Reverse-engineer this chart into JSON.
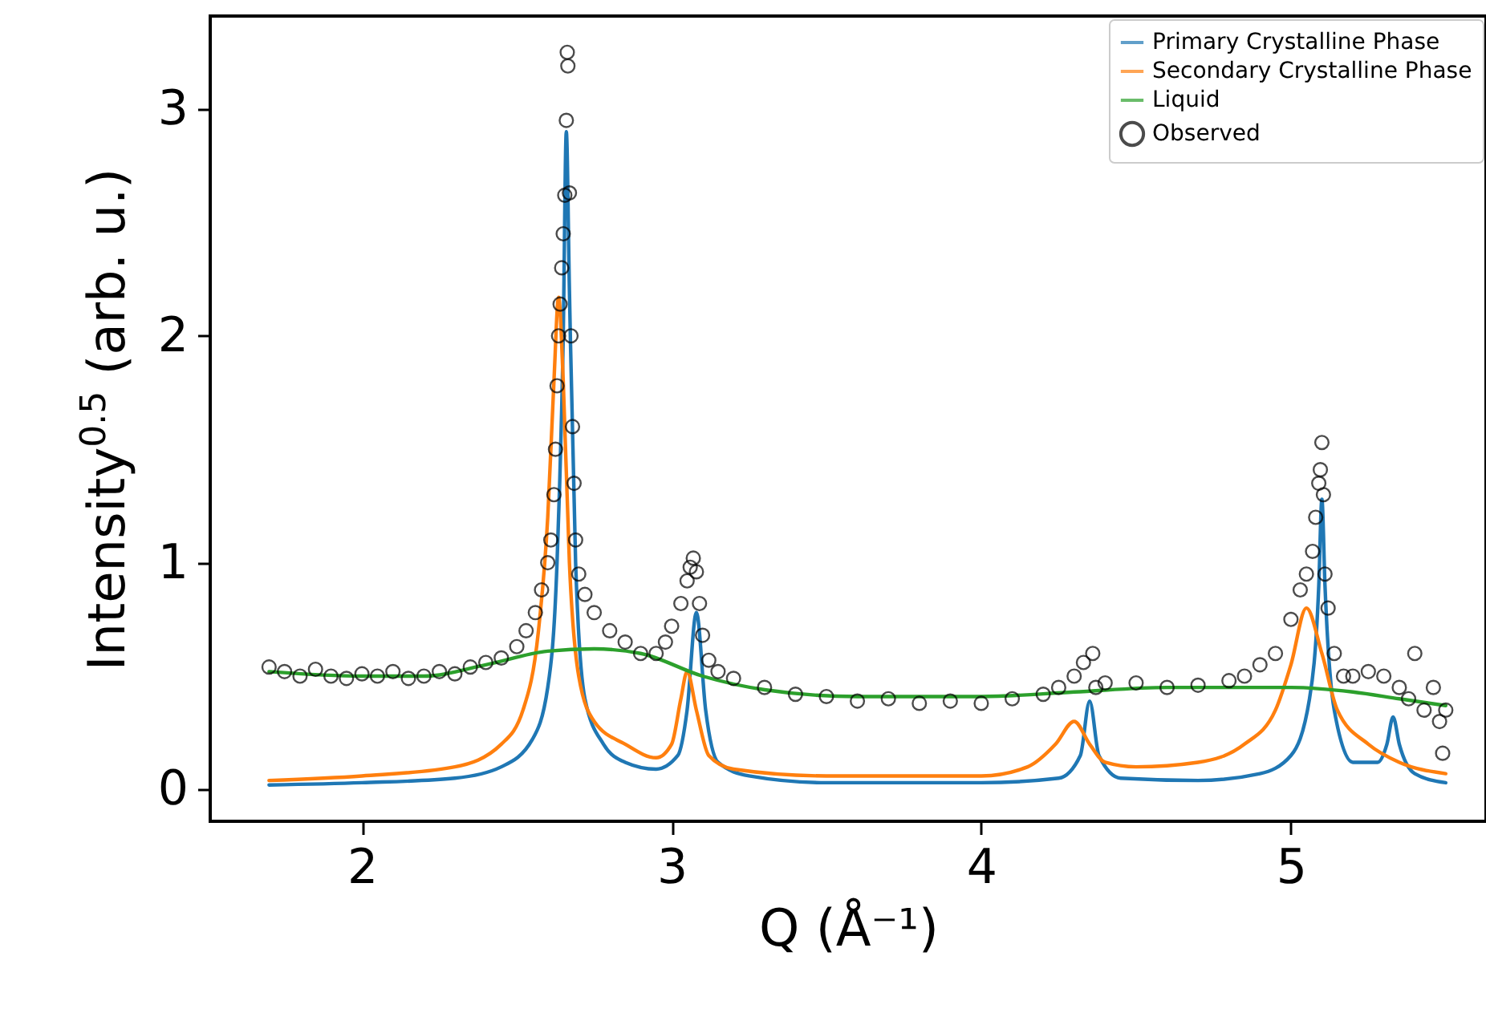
{
  "chart_data": {
    "type": "line",
    "xlabel": "Q (Å⁻¹)",
    "ylabel": "Intensity$^{0.5}$ (arb. u.)",
    "xlim": [
      1.51,
      5.63
    ],
    "ylim": [
      -0.14,
      3.41
    ],
    "xticks": [
      2,
      3,
      4,
      5
    ],
    "yticks": [
      0,
      1,
      2,
      3
    ],
    "grid": false,
    "legend": "top right",
    "series": [
      {
        "name": "Primary Crystalline Phase",
        "type": "line",
        "color": "#1f77b4",
        "x": [
          1.7,
          2.0,
          2.3,
          2.45,
          2.55,
          2.6,
          2.63,
          2.65,
          2.66,
          2.67,
          2.69,
          2.72,
          2.78,
          2.85,
          2.95,
          3.02,
          3.05,
          3.08,
          3.11,
          3.15,
          3.25,
          3.5,
          4.0,
          4.25,
          4.32,
          4.35,
          4.38,
          4.45,
          4.7,
          4.9,
          5.0,
          5.06,
          5.09,
          5.1,
          5.11,
          5.14,
          5.2,
          5.28,
          5.31,
          5.33,
          5.35,
          5.4,
          5.5
        ],
        "values": [
          0.02,
          0.03,
          0.05,
          0.1,
          0.22,
          0.45,
          1.0,
          2.0,
          2.9,
          2.2,
          1.0,
          0.4,
          0.2,
          0.12,
          0.09,
          0.15,
          0.35,
          0.78,
          0.35,
          0.12,
          0.06,
          0.03,
          0.03,
          0.05,
          0.15,
          0.39,
          0.15,
          0.05,
          0.04,
          0.07,
          0.15,
          0.4,
          0.9,
          1.28,
          0.9,
          0.35,
          0.12,
          0.12,
          0.2,
          0.32,
          0.2,
          0.07,
          0.03
        ]
      },
      {
        "name": "Secondary Crystalline Phase",
        "type": "line",
        "color": "#ff7f0e",
        "x": [
          1.7,
          2.0,
          2.3,
          2.45,
          2.52,
          2.57,
          2.6,
          2.62,
          2.635,
          2.65,
          2.67,
          2.7,
          2.75,
          2.85,
          2.95,
          3.0,
          3.03,
          3.05,
          3.08,
          3.12,
          3.2,
          3.5,
          4.0,
          4.15,
          4.24,
          4.3,
          4.35,
          4.4,
          4.5,
          4.7,
          4.85,
          4.95,
          5.0,
          5.05,
          5.1,
          5.15,
          5.25,
          5.35,
          5.5
        ],
        "values": [
          0.04,
          0.06,
          0.1,
          0.2,
          0.35,
          0.7,
          1.2,
          1.8,
          2.17,
          1.8,
          1.0,
          0.5,
          0.3,
          0.2,
          0.14,
          0.2,
          0.4,
          0.52,
          0.35,
          0.15,
          0.09,
          0.06,
          0.06,
          0.1,
          0.2,
          0.3,
          0.2,
          0.12,
          0.1,
          0.12,
          0.2,
          0.35,
          0.55,
          0.8,
          0.6,
          0.35,
          0.2,
          0.12,
          0.07
        ]
      },
      {
        "name": "Liquid",
        "type": "line",
        "color": "#2ca02c",
        "x": [
          1.7,
          2.0,
          2.2,
          2.4,
          2.6,
          2.75,
          2.9,
          3.1,
          3.3,
          3.6,
          4.0,
          4.3,
          4.6,
          5.0,
          5.2,
          5.35,
          5.5
        ],
        "values": [
          0.52,
          0.5,
          0.5,
          0.55,
          0.61,
          0.62,
          0.6,
          0.5,
          0.44,
          0.41,
          0.41,
          0.43,
          0.45,
          0.45,
          0.43,
          0.4,
          0.37
        ]
      },
      {
        "name": "Observed",
        "type": "scatter",
        "marker": "circle",
        "color": "#000000",
        "x": [
          1.7,
          1.75,
          1.8,
          1.85,
          1.9,
          1.95,
          2.0,
          2.05,
          2.1,
          2.15,
          2.2,
          2.25,
          2.3,
          2.35,
          2.4,
          2.45,
          2.5,
          2.53,
          2.56,
          2.58,
          2.6,
          2.61,
          2.62,
          2.625,
          2.63,
          2.635,
          2.64,
          2.645,
          2.65,
          2.655,
          2.66,
          2.665,
          2.663,
          2.67,
          2.675,
          2.68,
          2.685,
          2.69,
          2.7,
          2.72,
          2.75,
          2.8,
          2.85,
          2.9,
          2.95,
          2.98,
          3.0,
          3.03,
          3.05,
          3.06,
          3.07,
          3.08,
          3.09,
          3.1,
          3.12,
          3.15,
          3.2,
          3.3,
          3.4,
          3.5,
          3.6,
          3.7,
          3.8,
          3.9,
          4.0,
          4.1,
          4.2,
          4.25,
          4.3,
          4.33,
          4.36,
          4.37,
          4.4,
          4.5,
          4.6,
          4.7,
          4.8,
          4.85,
          4.9,
          4.95,
          5.0,
          5.03,
          5.05,
          5.07,
          5.08,
          5.09,
          5.095,
          5.1,
          5.105,
          5.11,
          5.12,
          5.14,
          5.17,
          5.2,
          5.25,
          5.3,
          5.35,
          5.38,
          5.4,
          5.43,
          5.46,
          5.48,
          5.49,
          5.5
        ],
        "values": [
          0.54,
          0.52,
          0.5,
          0.53,
          0.5,
          0.49,
          0.51,
          0.5,
          0.52,
          0.49,
          0.5,
          0.52,
          0.51,
          0.54,
          0.56,
          0.58,
          0.63,
          0.7,
          0.78,
          0.88,
          1.0,
          1.1,
          1.3,
          1.5,
          1.78,
          2.0,
          2.14,
          2.3,
          2.45,
          2.62,
          2.95,
          3.19,
          3.25,
          2.63,
          2.0,
          1.6,
          1.35,
          1.1,
          0.95,
          0.86,
          0.78,
          0.7,
          0.65,
          0.6,
          0.6,
          0.65,
          0.72,
          0.82,
          0.92,
          0.98,
          1.02,
          0.96,
          0.82,
          0.68,
          0.57,
          0.52,
          0.49,
          0.45,
          0.42,
          0.41,
          0.39,
          0.4,
          0.38,
          0.39,
          0.38,
          0.4,
          0.42,
          0.45,
          0.5,
          0.56,
          0.6,
          0.45,
          0.47,
          0.47,
          0.45,
          0.46,
          0.48,
          0.5,
          0.55,
          0.6,
          0.75,
          0.88,
          0.95,
          1.05,
          1.2,
          1.35,
          1.41,
          1.53,
          1.3,
          0.95,
          0.8,
          0.6,
          0.5,
          0.5,
          0.52,
          0.5,
          0.45,
          0.4,
          0.6,
          0.35,
          0.45,
          0.3,
          0.16,
          0.35
        ]
      }
    ]
  }
}
